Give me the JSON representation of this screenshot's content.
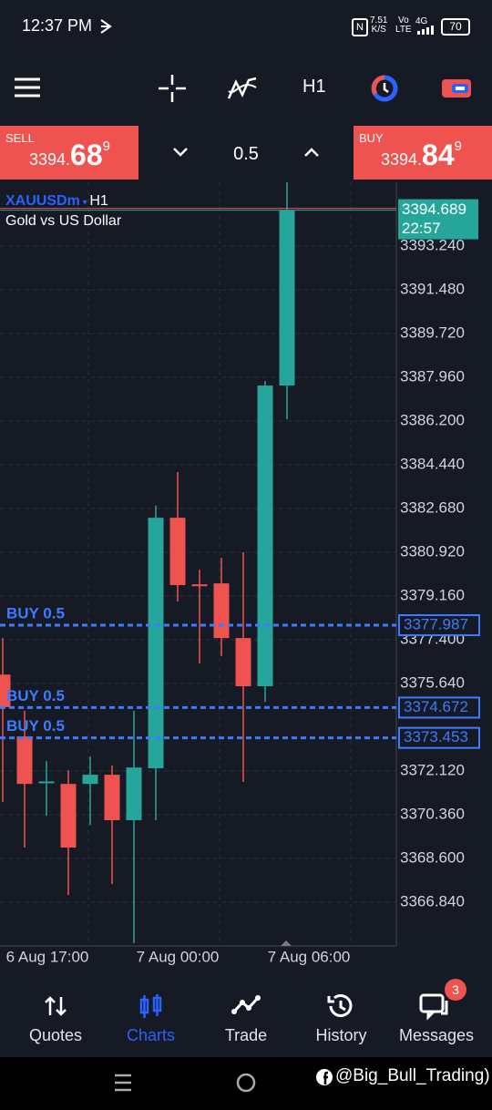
{
  "status_bar": {
    "time": "12:37 PM",
    "speed": "7.51",
    "speed_unit": "K/S",
    "volte_top": "Vo",
    "volte_bottom": "LTE",
    "network": "4G",
    "battery": "70"
  },
  "toolbar": {
    "timeframe": "H1"
  },
  "trade_panel": {
    "sell": {
      "label": "SELL",
      "price_main": "3394.",
      "price_big": "68",
      "price_sup": "9"
    },
    "volume": "0.5",
    "buy": {
      "label": "BUY",
      "price_main": "3394.",
      "price_big": "84",
      "price_sup": "9"
    }
  },
  "chart_header": {
    "symbol": "XAUUSDm",
    "timeframe": "H1",
    "description": "Gold vs US Dollar"
  },
  "chart_data": {
    "type": "candlestick",
    "categories": [
      null,
      "6 Aug 17:00",
      null,
      null,
      null,
      null,
      null,
      null,
      "7 Aug 00:00",
      null,
      null,
      null,
      null,
      null,
      "7 Aug 06:00"
    ],
    "open": [
      3376.0,
      3373.51,
      3371.65,
      3371.6,
      3371.6,
      3371.97,
      3370.14,
      3372.23,
      3382.31,
      3379.63,
      3379.67,
      3377.47,
      3375.53,
      3387.63,
      null
    ],
    "high": [
      3377.47,
      3374.54,
      3372.52,
      3372.15,
      3372.7,
      3372.34,
      3374.54,
      3382.79,
      3384.15,
      3380.22,
      3380.7,
      3380.92,
      3387.81,
      3395.81,
      null
    ],
    "low": [
      3370.87,
      3369.04,
      3370.32,
      3367.13,
      3369.95,
      3367.57,
      3365.19,
      3370.14,
      3378.94,
      3376.45,
      3376.74,
      3371.68,
      3374.9,
      3386.27,
      null
    ],
    "close": [
      3374.69,
      3371.6,
      3371.7,
      3369.04,
      3371.97,
      3370.14,
      3372.26,
      3382.31,
      3379.6,
      3379.6,
      3377.47,
      3375.53,
      3387.63,
      3394.689,
      null
    ],
    "up_color": "#26a69a",
    "down_color": "#ef5350",
    "ylim": [
      3365.08,
      3395.81
    ],
    "yticks": [
      {
        "value": 3393.24,
        "label": "3393.240"
      },
      {
        "value": 3391.48,
        "label": "3391.480"
      },
      {
        "value": 3389.72,
        "label": "3389.720"
      },
      {
        "value": 3387.96,
        "label": "3387.960"
      },
      {
        "value": 3386.2,
        "label": "3386.200"
      },
      {
        "value": 3384.44,
        "label": "3384.440"
      },
      {
        "value": 3382.68,
        "label": "3382.680"
      },
      {
        "value": 3380.92,
        "label": "3380.920"
      },
      {
        "value": 3379.16,
        "label": "3379.160"
      },
      {
        "value": 3377.4,
        "label": "3377.400"
      },
      {
        "value": 3375.64,
        "label": "3375.640"
      },
      {
        "value": 3372.12,
        "label": "3372.120"
      },
      {
        "value": 3370.36,
        "label": "3370.360"
      },
      {
        "value": 3368.6,
        "label": "3368.600"
      },
      {
        "value": 3366.84,
        "label": "3366.840"
      }
    ],
    "grid": true,
    "current_price": 3394.689,
    "current_time": "22:57",
    "orders": [
      {
        "label": "BUY 0.5",
        "price": 3377.987
      },
      {
        "label": "BUY 0.5",
        "price": 3374.672
      },
      {
        "label": "BUY 0.5",
        "price": 3373.453
      }
    ],
    "order_color": "#3d7bff"
  },
  "bottom_nav": {
    "items": [
      "Quotes",
      "Charts",
      "Trade",
      "History",
      "Messages"
    ],
    "badge": "3"
  },
  "watermark": "@Big_Bull_Trading)"
}
